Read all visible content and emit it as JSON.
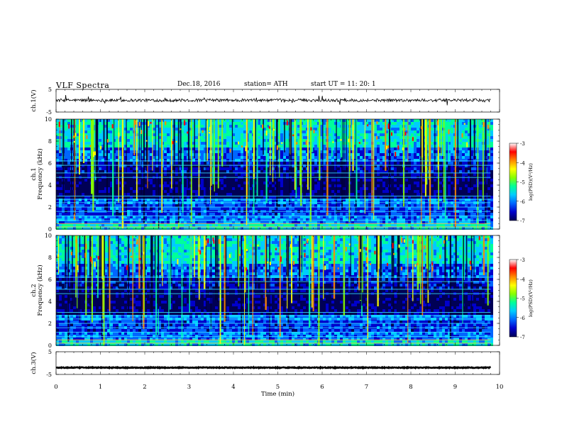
{
  "header": {
    "title": "VLF  Spectra",
    "date": "Dec.18, 2016",
    "station": "station= ATH",
    "start_ut": "start  UT  =    11: 20: 1"
  },
  "colors": {
    "colormap": [
      "#000055",
      "#0000cc",
      "#0066ff",
      "#00ccff",
      "#00ff99",
      "#88ff00",
      "#ffff00",
      "#ff8800",
      "#ff0000",
      "#ffffff"
    ]
  },
  "chart_data": [
    {
      "type": "line",
      "name": "ch1-waveform",
      "ylabel": "ch.1(V)",
      "ylim": [
        -5,
        5
      ],
      "yticks": [
        "5",
        "-5"
      ],
      "xlim": [
        0,
        10
      ],
      "baseline": 0.2,
      "trace_end": 9.8
    },
    {
      "type": "heatmap",
      "name": "ch1-spectrogram",
      "ylabel_line1": "ch.1",
      "ylabel_line2": "Frequency  (kHz)",
      "ylim": [
        0,
        10
      ],
      "yticks": [
        "0",
        "2",
        "4",
        "6",
        "8",
        "10"
      ],
      "xlim": [
        0,
        10
      ],
      "data_end": 9.8,
      "colorbar": {
        "label": "log(PSD)(V²/Hz)",
        "range": [
          -7,
          -3
        ],
        "ticks": [
          "-3",
          "-4",
          "-5",
          "-6",
          "-7"
        ]
      }
    },
    {
      "type": "heatmap",
      "name": "ch2-spectrogram",
      "ylabel_line1": "ch.2",
      "ylabel_line2": "Frequency  (kHz)",
      "ylim": [
        0,
        10
      ],
      "yticks": [
        "0",
        "2",
        "4",
        "6",
        "8",
        "10"
      ],
      "xlim": [
        0,
        10
      ],
      "data_end": 9.8,
      "colorbar": {
        "label": "log(PSD)(V²/Hz)",
        "range": [
          -7,
          -3
        ],
        "ticks": [
          "-3",
          "-4",
          "-5",
          "-6",
          "-7"
        ]
      }
    },
    {
      "type": "line",
      "name": "ch3-waveform",
      "ylabel": "ch.3(V)",
      "ylim": [
        -5,
        5
      ],
      "yticks": [
        "5",
        "-5"
      ],
      "xlim": [
        0,
        10
      ],
      "xlabel": "Time  (min)",
      "xticks": [
        "0",
        "1",
        "2",
        "3",
        "4",
        "5",
        "6",
        "7",
        "8",
        "9",
        "10"
      ],
      "baseline": -2.0,
      "trace_end": 9.8
    }
  ]
}
